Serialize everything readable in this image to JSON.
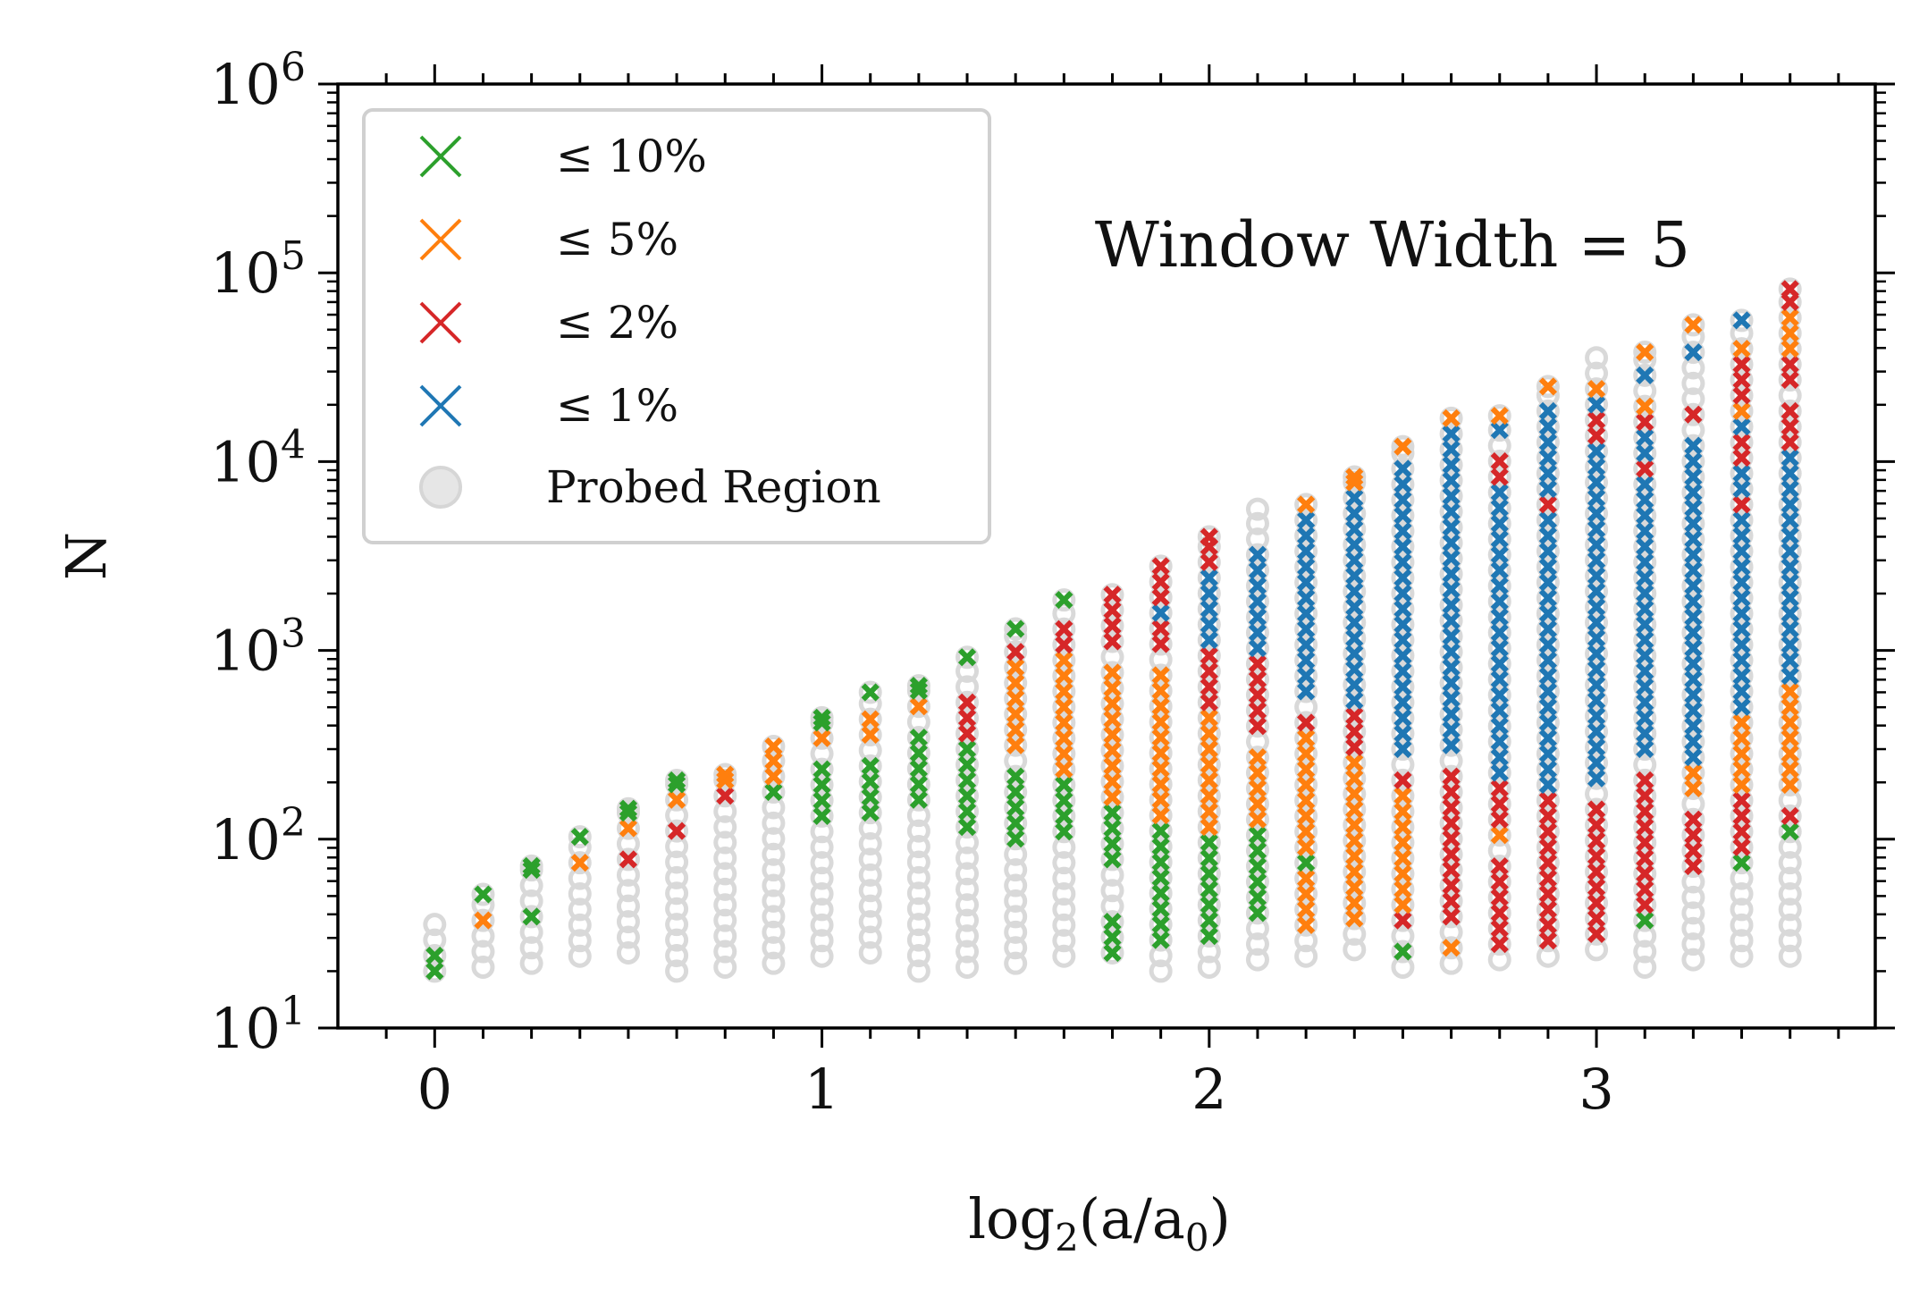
{
  "chart_data": {
    "type": "scatter",
    "annotation": "Window Width = 5",
    "xlabel": {
      "base": "log",
      "sub": "2",
      "rest": "(a/a",
      "sub2": "0",
      "end": ")"
    },
    "ylabel": "N",
    "xlim": [
      -0.25,
      3.72
    ],
    "ylim": [
      10,
      1000000
    ],
    "yscale": "log",
    "grid": false,
    "legend_location": "upper-left",
    "x_ticks": [
      {
        "value": 0,
        "label": "0"
      },
      {
        "value": 1,
        "label": "1"
      },
      {
        "value": 2,
        "label": "2"
      },
      {
        "value": 3,
        "label": "3"
      }
    ],
    "y_ticks": [
      {
        "value": 10,
        "base": "10",
        "exp": "1"
      },
      {
        "value": 100,
        "base": "10",
        "exp": "2"
      },
      {
        "value": 1000,
        "base": "10",
        "exp": "3"
      },
      {
        "value": 10000,
        "base": "10",
        "exp": "4"
      },
      {
        "value": 100000,
        "base": "10",
        "exp": "5"
      },
      {
        "value": 1000000,
        "base": "10",
        "exp": "6"
      }
    ],
    "legend": [
      {
        "label": "≤ 10%",
        "color": "#2ca02c",
        "marker": "x"
      },
      {
        "label": "≤ 5%",
        "color": "#ff7f0e",
        "marker": "x"
      },
      {
        "label": "≤ 2%",
        "color": "#d62728",
        "marker": "x"
      },
      {
        "label": "≤ 1%",
        "color": "#1f77b4",
        "marker": "x"
      },
      {
        "label": "Probed Region",
        "color": "#d9d9d9",
        "marker": "o"
      }
    ],
    "columns": [
      {
        "x": 0.0,
        "nmin": 20,
        "nmax": 36,
        "bands": [
          [
            20,
            27,
            "g"
          ]
        ]
      },
      {
        "x": 0.125,
        "nmin": 21,
        "nmax": 51,
        "bands": [
          [
            28,
            28,
            "g"
          ],
          [
            37,
            37,
            "o"
          ],
          [
            50,
            51,
            "g"
          ]
        ]
      },
      {
        "x": 0.25,
        "nmin": 22,
        "nmax": 72,
        "bands": [
          [
            40,
            40,
            "g"
          ],
          [
            53,
            53,
            "o"
          ],
          [
            70,
            72,
            "g"
          ]
        ]
      },
      {
        "x": 0.375,
        "nmin": 24,
        "nmax": 103,
        "bands": [
          [
            57,
            57,
            "r"
          ],
          [
            76,
            76,
            "o"
          ],
          [
            101,
            103,
            "g"
          ]
        ]
      },
      {
        "x": 0.5,
        "nmin": 25,
        "nmax": 145,
        "bands": [
          [
            81,
            81,
            "r"
          ],
          [
            108,
            108,
            "o"
          ],
          [
            143,
            145,
            "g"
          ]
        ]
      },
      {
        "x": 0.625,
        "nmin": 20,
        "nmax": 205,
        "bands": [
          [
            115,
            115,
            "r"
          ],
          [
            153,
            153,
            "o"
          ],
          [
            205,
            205,
            "g"
          ]
        ]
      },
      {
        "x": 0.75,
        "nmin": 21,
        "nmax": 220,
        "bands": [
          [
            165,
            165,
            "r"
          ],
          [
            218,
            220,
            "o"
          ]
        ]
      },
      {
        "x": 0.875,
        "nmin": 22,
        "nmax": 310,
        "bands": [
          [
            175,
            175,
            "g"
          ],
          [
            230,
            310,
            "o"
          ]
        ]
      },
      {
        "x": 1.0,
        "nmin": 24,
        "nmax": 440,
        "bands": [
          [
            135,
            250,
            "g"
          ],
          [
            325,
            325,
            "o"
          ],
          [
            440,
            440,
            "g"
          ]
        ]
      },
      {
        "x": 1.125,
        "nmin": 25,
        "nmax": 600,
        "bands": [
          [
            145,
            270,
            "g"
          ],
          [
            350,
            470,
            "o"
          ],
          [
            600,
            600,
            "g"
          ]
        ]
      },
      {
        "x": 1.25,
        "nmin": 20,
        "nmax": 650,
        "bands": [
          [
            160,
            390,
            "g"
          ],
          [
            480,
            480,
            "o"
          ],
          [
            650,
            650,
            "g"
          ]
        ]
      },
      {
        "x": 1.375,
        "nmin": 21,
        "nmax": 920,
        "bands": [
          [
            120,
            300,
            "g"
          ],
          [
            390,
            540,
            "r"
          ],
          [
            700,
            700,
            "o"
          ],
          [
            920,
            920,
            "g"
          ]
        ]
      },
      {
        "x": 1.5,
        "nmin": 22,
        "nmax": 1300,
        "bands": [
          [
            95,
            230,
            "g"
          ],
          [
            300,
            760,
            "o"
          ],
          [
            980,
            980,
            "r"
          ],
          [
            1300,
            1300,
            "g"
          ]
        ]
      },
      {
        "x": 1.625,
        "nmin": 24,
        "nmax": 1850,
        "bands": [
          [
            100,
            190,
            "g"
          ],
          [
            230,
            880,
            "o"
          ],
          [
            1030,
            1300,
            "r"
          ],
          [
            1850,
            1850,
            "g"
          ]
        ]
      },
      {
        "x": 1.75,
        "nmin": 25,
        "nmax": 2000,
        "bands": [
          [
            25,
            35,
            "g"
          ],
          [
            80,
            130,
            "g"
          ],
          [
            160,
            830,
            "o"
          ],
          [
            1000,
            2000,
            "r"
          ]
        ]
      },
      {
        "x": 1.875,
        "nmin": 20,
        "nmax": 2800,
        "bands": [
          [
            27,
            115,
            "g"
          ],
          [
            140,
            820,
            "o"
          ],
          [
            1000,
            1250,
            "r"
          ],
          [
            1550,
            1550,
            "b"
          ],
          [
            1900,
            2800,
            "r"
          ]
        ]
      },
      {
        "x": 2.0,
        "nmin": 21,
        "nmax": 4000,
        "bands": [
          [
            29,
            95,
            "g"
          ],
          [
            120,
            430,
            "o"
          ],
          [
            520,
            1050,
            "r"
          ],
          [
            1200,
            2400,
            "b"
          ],
          [
            2900,
            4000,
            "r"
          ]
        ]
      },
      {
        "x": 2.125,
        "nmin": 23,
        "nmax": 5600,
        "bands": [
          [
            30,
            30,
            "o"
          ],
          [
            40,
            100,
            "g"
          ],
          [
            120,
            300,
            "o"
          ],
          [
            360,
            800,
            "r"
          ],
          [
            950,
            3300,
            "b"
          ],
          [
            4200,
            4200,
            "r"
          ]
        ]
      },
      {
        "x": 2.25,
        "nmin": 24,
        "nmax": 6000,
        "bands": [
          [
            33,
            65,
            "o"
          ],
          [
            80,
            80,
            "g"
          ],
          [
            95,
            330,
            "o"
          ],
          [
            390,
            460,
            "r"
          ],
          [
            550,
            4700,
            "b"
          ],
          [
            6000,
            6000,
            "o"
          ]
        ]
      },
      {
        "x": 2.375,
        "nmin": 26,
        "nmax": 8300,
        "bands": [
          [
            34,
            260,
            "o"
          ],
          [
            310,
            470,
            "r"
          ],
          [
            550,
            6800,
            "b"
          ],
          [
            8300,
            8300,
            "o"
          ]
        ]
      },
      {
        "x": 2.5,
        "nmin": 21,
        "nmax": 12000,
        "bands": [
          [
            27,
            27,
            "g"
          ],
          [
            37,
            37,
            "r"
          ],
          [
            45,
            180,
            "o"
          ],
          [
            210,
            210,
            "r"
          ],
          [
            270,
            9500,
            "b"
          ],
          [
            12000,
            12000,
            "o"
          ]
        ]
      },
      {
        "x": 2.625,
        "nmin": 22,
        "nmax": 17000,
        "bands": [
          [
            28,
            28,
            "o"
          ],
          [
            36,
            240,
            "r"
          ],
          [
            290,
            14000,
            "b"
          ],
          [
            17000,
            17000,
            "o"
          ]
        ]
      },
      {
        "x": 2.75,
        "nmin": 23,
        "nmax": 17500,
        "bands": [
          [
            28,
            80,
            "r"
          ],
          [
            100,
            100,
            "o"
          ],
          [
            125,
            180,
            "r"
          ],
          [
            220,
            7000,
            "b"
          ],
          [
            8400,
            10000,
            "r"
          ],
          [
            14000,
            14000,
            "b"
          ],
          [
            17500,
            17500,
            "o"
          ]
        ]
      },
      {
        "x": 2.875,
        "nmin": 24,
        "nmax": 25000,
        "bands": [
          [
            30,
            160,
            "r"
          ],
          [
            200,
            5000,
            "b"
          ],
          [
            6200,
            6200,
            "r"
          ],
          [
            7500,
            20000,
            "b"
          ],
          [
            25000,
            25000,
            "o"
          ]
        ]
      },
      {
        "x": 3.0,
        "nmin": 26,
        "nmax": 36000,
        "bands": [
          [
            30,
            160,
            "r"
          ],
          [
            200,
            12000,
            "b"
          ],
          [
            14500,
            17500,
            "r"
          ],
          [
            21000,
            21000,
            "b"
          ],
          [
            26000,
            26000,
            "o"
          ]
        ]
      },
      {
        "x": 3.125,
        "nmin": 21,
        "nmax": 38000,
        "bands": [
          [
            38,
            38,
            "g"
          ],
          [
            46,
            230,
            "r"
          ],
          [
            280,
            7500,
            "b"
          ],
          [
            9000,
            9000,
            "r"
          ],
          [
            11000,
            13000,
            "b"
          ],
          [
            16000,
            16000,
            "r"
          ],
          [
            21000,
            21000,
            "o"
          ],
          [
            29000,
            29000,
            "b"
          ],
          [
            38000,
            38000,
            "o"
          ]
        ]
      },
      {
        "x": 3.25,
        "nmin": 23,
        "nmax": 53000,
        "bands": [
          [
            53,
            53,
            "g"
          ],
          [
            65,
            140,
            "r"
          ],
          [
            170,
            230,
            "o"
          ],
          [
            280,
            13000,
            "b"
          ],
          [
            16000,
            20000,
            "r"
          ],
          [
            24000,
            24000,
            "b"
          ],
          [
            29000,
            29000,
            "o"
          ],
          [
            40000,
            40000,
            "b"
          ],
          [
            53000,
            53000,
            "o"
          ]
        ]
      },
      {
        "x": 3.375,
        "nmin": 24,
        "nmax": 56000,
        "bands": [
          [
            75,
            75,
            "g"
          ],
          [
            90,
            160,
            "r"
          ],
          [
            200,
            420,
            "o"
          ],
          [
            500,
            4800,
            "b"
          ],
          [
            5600,
            5600,
            "r"
          ],
          [
            6800,
            8200,
            "b"
          ],
          [
            10000,
            12000,
            "r"
          ],
          [
            15000,
            15000,
            "b"
          ],
          [
            19000,
            19000,
            "o"
          ],
          [
            23000,
            32000,
            "r"
          ],
          [
            39000,
            39000,
            "o"
          ],
          [
            56000,
            56000,
            "b"
          ]
        ]
      },
      {
        "x": 3.5,
        "nmin": 24,
        "nmax": 82000,
        "bands": [
          [
            105,
            105,
            "g"
          ],
          [
            140,
            140,
            "r"
          ],
          [
            180,
            650,
            "o"
          ],
          [
            770,
            10500,
            "b"
          ],
          [
            12500,
            13500,
            "r"
          ],
          [
            16000,
            20000,
            "r"
          ],
          [
            25000,
            31000,
            "r"
          ],
          [
            36000,
            60000,
            "o"
          ],
          [
            72000,
            82000,
            "r"
          ]
        ]
      }
    ]
  }
}
